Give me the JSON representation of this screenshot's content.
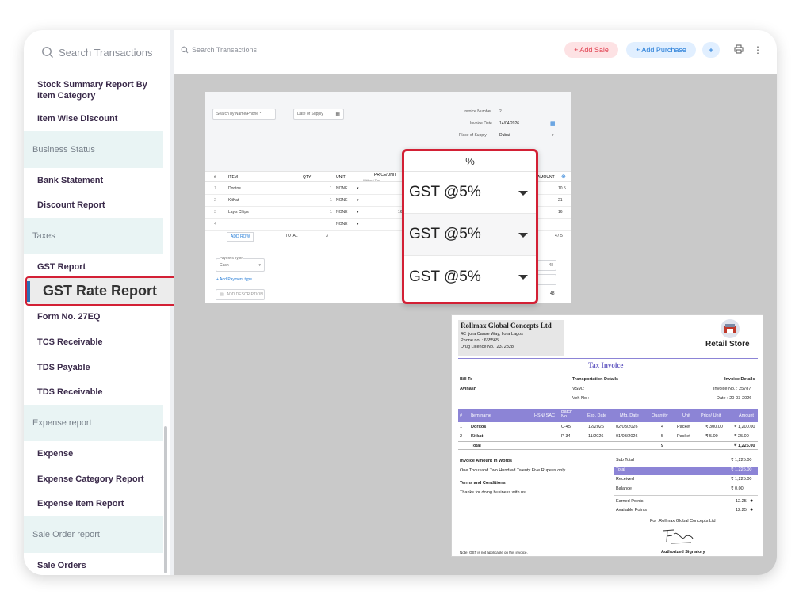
{
  "sidebar": {
    "search_placeholder": "Search Transactions",
    "items": [
      {
        "type": "item",
        "label": "Stock Summary Report By Item Category"
      },
      {
        "type": "item",
        "label": "Item Wise Discount"
      },
      {
        "type": "head",
        "label": "Business Status"
      },
      {
        "type": "item",
        "label": "Bank Statement"
      },
      {
        "type": "item",
        "label": "Discount Report"
      },
      {
        "type": "head",
        "label": "Taxes"
      },
      {
        "type": "item",
        "label": "GST Report"
      },
      {
        "type": "item",
        "label": "GST Rate Report"
      },
      {
        "type": "item",
        "label": "Form No. 27EQ"
      },
      {
        "type": "item",
        "label": "TCS Receivable"
      },
      {
        "type": "item",
        "label": "TDS Payable"
      },
      {
        "type": "item",
        "label": "TDS Receivable"
      },
      {
        "type": "head",
        "label": "Expense report"
      },
      {
        "type": "item",
        "label": "Expense"
      },
      {
        "type": "item",
        "label": "Expense Category Report"
      },
      {
        "type": "item",
        "label": "Expense Item Report"
      },
      {
        "type": "head",
        "label": "Sale Order report"
      },
      {
        "type": "item",
        "label": "Sale Orders"
      }
    ],
    "selected_label": "GST Rate Report"
  },
  "topbar": {
    "search_placeholder": "Search Transactions",
    "add_sale": "+ Add Sale",
    "add_purchase": "+ Add Purchase",
    "plus": "+"
  },
  "form": {
    "search_party": "Search by Name/Phone *",
    "date_of_supply": "Date of Supply",
    "invoice_number_label": "Invoice Number",
    "invoice_number": "2",
    "invoice_date_label": "Invoice Date",
    "invoice_date": "14/04/2026",
    "place_of_supply_label": "Place of Supply",
    "place_of_supply": "Dubai",
    "columns": [
      "#",
      "ITEM",
      "QTY",
      "UNIT",
      "PRICE/UNIT",
      "AMOUNT"
    ],
    "price_sub": "Without Tax",
    "rows": [
      {
        "n": "1",
        "item": "Doritos",
        "qty": "1",
        "unit": "NONE",
        "price": "",
        "amount": "10.5"
      },
      {
        "n": "2",
        "item": "KitKat",
        "qty": "1",
        "unit": "NONE",
        "price": "",
        "amount": "21"
      },
      {
        "n": "3",
        "item": "Lay's Chips",
        "qty": "1",
        "unit": "NONE",
        "price": "16",
        "amount": "16"
      },
      {
        "n": "4",
        "item": "",
        "qty": "",
        "unit": "NONE",
        "price": "",
        "amount": ""
      }
    ],
    "add_row": "ADD ROW",
    "total_label": "TOTAL",
    "total_qty": "3",
    "total_amount": "47.5",
    "payment_type_label": "Payment Type",
    "payment_type": "Cash",
    "add_payment_type": "+ Add Payment type",
    "add_description": "ADD DESCRIPTION",
    "side_value_1": "48",
    "side_value_2": "48"
  },
  "popup": {
    "header": "%",
    "options": [
      "GST @5%",
      "GST @5%",
      "GST @5%"
    ]
  },
  "invoice": {
    "company": "Rollmax Global Concepts Ltd",
    "address": "4C Ijora Cause Way, Ijora Lagos",
    "phone": "Phone no. : 665565",
    "drug_licence": "Drug Licence No.: 2372828",
    "store": "Retail Store",
    "title": "Tax Invoice",
    "bill_to_label": "Bill To",
    "bill_to": "Avinash",
    "transport_label": "Transportation Details",
    "vsm": "VSM.:",
    "veh": "Veh No.:",
    "details_label": "Invoice Details",
    "invoice_no": "Invoice No. : 25787",
    "date": "Date : 20-03-2026",
    "columns": [
      "#",
      "Item name",
      "HSN/ SAC",
      "Batch No.",
      "Exp. Date",
      "Mfg. Date",
      "Quantity",
      "Unit",
      "Price/ Unit",
      "Amount"
    ],
    "items": [
      {
        "n": "1",
        "name": "Doritos",
        "batch": "C-45",
        "exp": "12/2026",
        "mfg": "02/03/2026",
        "qty": "4",
        "unit": "Packet",
        "price": "₹ 300.00",
        "amount": "₹ 1,200.00"
      },
      {
        "n": "2",
        "name": "Kitkat",
        "batch": "P-34",
        "exp": "11/2026",
        "mfg": "01/03/2026",
        "qty": "5",
        "unit": "Packet",
        "price": "₹ 5.00",
        "amount": "₹ 25.00"
      }
    ],
    "total_label": "Total",
    "total_qty": "9",
    "total_amount": "₹ 1,225.00",
    "amount_words_label": "Invoice Amount In Words",
    "amount_words": "One Thousand Two Hundred Twenty Five Rupees only",
    "terms_label": "Terms and Conditions",
    "terms": "Thanks for doing business with us!",
    "summary": [
      {
        "label": "Sub Total",
        "value": "₹ 1,225.00"
      },
      {
        "label": "Total",
        "value": "₹ 1,225.00"
      },
      {
        "label": "Received",
        "value": "₹ 1,225.00"
      },
      {
        "label": "Balance",
        "value": "₹ 0.00"
      }
    ],
    "earned_points_label": "Earned Points",
    "earned_points": "12.25",
    "available_points_label": "Available Points",
    "available_points": "12.25",
    "for_company": "For :Rollmax Global Concepts Ltd",
    "signatory": "Authorized Signatory",
    "note": "Note: GST is not applicable on this invoice."
  },
  "colors": {
    "accent_red": "#d32035",
    "invoice_purple": "#8c84d6",
    "sale_red": "#e03b4b",
    "purchase_blue": "#1e78d6"
  }
}
